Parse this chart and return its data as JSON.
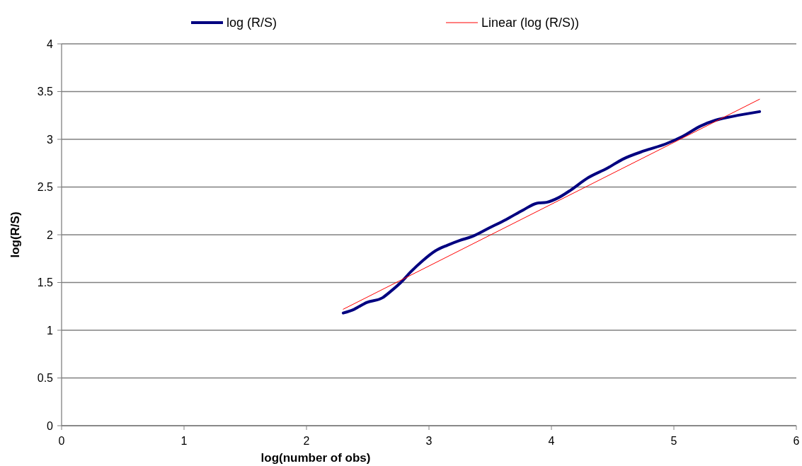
{
  "chart_data": {
    "type": "line",
    "xlabel": "log(number of obs)",
    "ylabel": "log(R/S)",
    "xlim": [
      0,
      6
    ],
    "xticks": [
      0,
      1,
      2,
      3,
      4,
      5,
      6
    ],
    "ylim": [
      0,
      4
    ],
    "yticks": [
      0,
      0.5,
      1,
      1.5,
      2,
      2.5,
      3,
      3.5,
      4
    ],
    "grid": "y",
    "legend": "top",
    "marker": "none",
    "series": [
      {
        "name": "log (R/S)",
        "color": "#000080",
        "x": [
          2.3,
          2.39,
          2.49,
          2.62,
          2.69,
          2.77,
          2.85,
          2.95,
          3.05,
          3.15,
          3.25,
          3.35,
          3.49,
          3.63,
          3.77,
          3.88,
          3.96,
          4.06,
          4.16,
          4.29,
          4.46,
          4.58,
          4.76,
          4.93,
          5.07,
          5.22,
          5.34,
          5.48,
          5.7
        ],
        "values": [
          1.18,
          1.22,
          1.29,
          1.34,
          1.41,
          1.5,
          1.61,
          1.73,
          1.83,
          1.89,
          1.94,
          1.98,
          2.07,
          2.16,
          2.26,
          2.33,
          2.34,
          2.39,
          2.47,
          2.59,
          2.7,
          2.79,
          2.88,
          2.95,
          3.03,
          3.14,
          3.2,
          3.24,
          3.29
        ]
      },
      {
        "name": "Linear (log (R/S))",
        "color": "#ff0000",
        "x": [
          2.3,
          5.7
        ],
        "values": [
          1.22,
          3.42
        ]
      }
    ]
  }
}
